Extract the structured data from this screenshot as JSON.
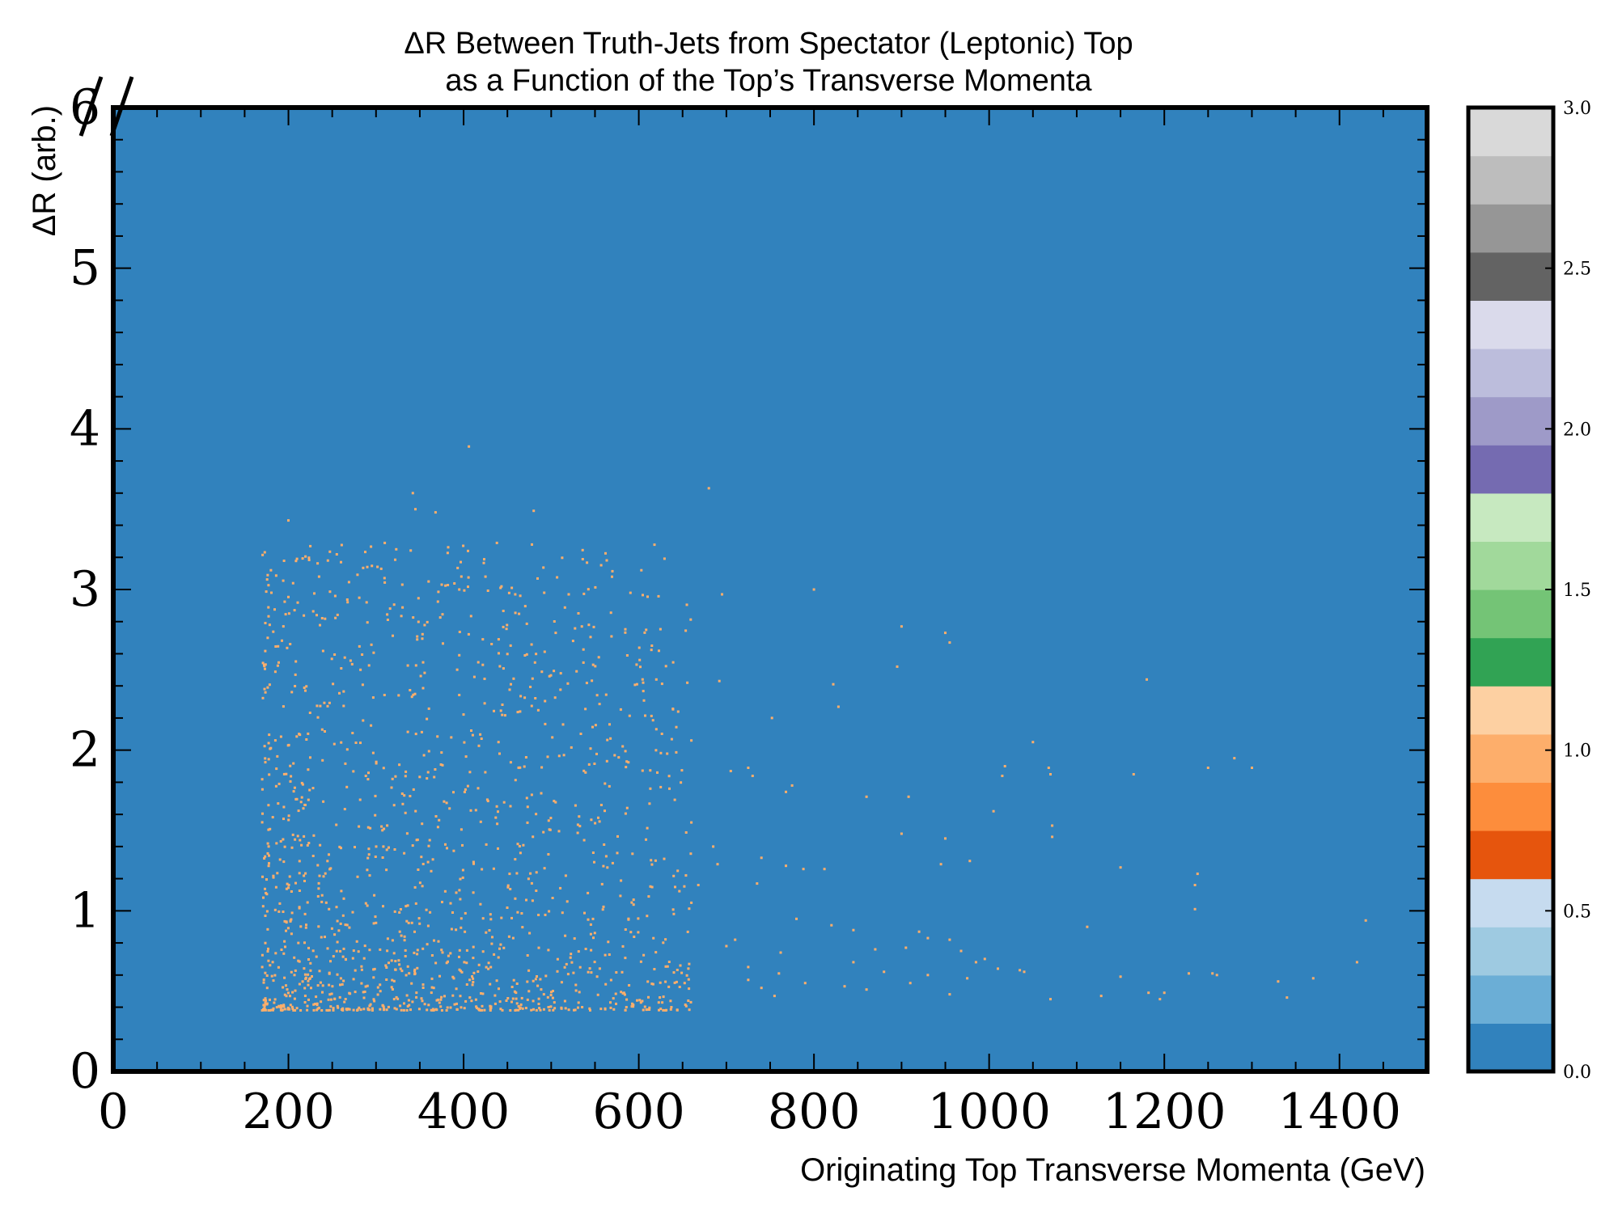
{
  "chart_data": {
    "type": "heatmap",
    "title_line1": "ΔR Between Truth-Jets from Spectator (Leptonic) Top",
    "title_line2": "as a Function of the Top’s Transverse Momenta",
    "xlabel": "Originating Top Transverse Momenta (GeV)",
    "ylabel": "ΔR (arb.)",
    "xlim": [
      0,
      1500
    ],
    "ylim": [
      0,
      6
    ],
    "x_ticks": [
      0,
      200,
      400,
      600,
      800,
      1000,
      1200,
      1400
    ],
    "y_ticks": [
      0,
      1,
      2,
      3,
      4,
      5,
      6
    ],
    "grid": false,
    "background_color": "#3182bd",
    "point_color": "#fdae6b",
    "colorbar": {
      "range": [
        0,
        3
      ],
      "ticks": [
        "0.0",
        "0.5",
        "1.0",
        "1.5",
        "2.0",
        "2.5",
        "3.0"
      ],
      "colors": [
        "#3182bd",
        "#6baed6",
        "#9ecae1",
        "#c6dbef",
        "#e6550d",
        "#fd8d3c",
        "#fdae6b",
        "#fdd0a2",
        "#31a354",
        "#74c476",
        "#a1d99b",
        "#c7e9c0",
        "#756bb1",
        "#9e9ac8",
        "#bcbddc",
        "#dadaeb",
        "#636363",
        "#969696",
        "#bdbdbd",
        "#d9d9d9"
      ]
    },
    "points": [
      [
        200,
        3.43
      ],
      [
        225,
        3.27
      ],
      [
        245,
        3.18
      ],
      [
        260,
        3.17
      ],
      [
        290,
        3.14
      ],
      [
        180,
        3.12
      ],
      [
        310,
        3.29
      ],
      [
        405,
        3.24
      ],
      [
        342,
        3.6
      ],
      [
        345,
        3.5
      ],
      [
        368,
        3.48
      ],
      [
        480,
        3.49
      ],
      [
        438,
        3.29
      ],
      [
        478,
        3.28
      ],
      [
        406,
        3.89
      ],
      [
        680,
        3.63
      ],
      [
        800,
        3.0
      ],
      [
        695,
        2.97
      ],
      [
        375,
        3.03
      ],
      [
        360,
        3.05
      ],
      [
        425,
        3.08
      ],
      [
        395,
        3.0
      ],
      [
        330,
        3.03
      ],
      [
        455,
        3.01
      ],
      [
        492,
        2.98
      ],
      [
        520,
        2.97
      ],
      [
        543,
        2.78
      ],
      [
        535,
        2.77
      ],
      [
        525,
        2.68
      ],
      [
        615,
        2.65
      ],
      [
        900,
        2.77
      ],
      [
        950,
        2.73
      ],
      [
        955,
        2.67
      ],
      [
        1180,
        2.44
      ],
      [
        895,
        2.52
      ],
      [
        620,
        2.44
      ],
      [
        605,
        2.42
      ],
      [
        598,
        2.41
      ],
      [
        692,
        2.43
      ],
      [
        822,
        2.41
      ],
      [
        828,
        2.27
      ],
      [
        752,
        2.2
      ],
      [
        498,
        2.46
      ],
      [
        470,
        2.59
      ],
      [
        440,
        2.69
      ],
      [
        432,
        2.66
      ],
      [
        1050,
        2.05
      ],
      [
        1018,
        1.9
      ],
      [
        1068,
        1.89
      ],
      [
        1250,
        1.89
      ],
      [
        1280,
        1.95
      ],
      [
        1300,
        1.89
      ],
      [
        1015,
        1.84
      ],
      [
        1070,
        1.85
      ],
      [
        1165,
        1.85
      ],
      [
        860,
        1.71
      ],
      [
        908,
        1.71
      ],
      [
        1005,
        1.62
      ],
      [
        900,
        1.48
      ],
      [
        950,
        1.45
      ],
      [
        1072,
        1.53
      ],
      [
        1072,
        1.46
      ],
      [
        945,
        1.29
      ],
      [
        978,
        1.31
      ],
      [
        1150,
        1.27
      ],
      [
        1238,
        1.23
      ],
      [
        1235,
        1.16
      ],
      [
        1235,
        1.01
      ],
      [
        1430,
        0.94
      ],
      [
        1420,
        0.68
      ],
      [
        1370,
        0.58
      ],
      [
        1330,
        0.56
      ],
      [
        1340,
        0.46
      ],
      [
        1255,
        0.61
      ],
      [
        1228,
        0.61
      ],
      [
        1200,
        0.49
      ],
      [
        1195,
        0.45
      ],
      [
        1182,
        0.49
      ],
      [
        1128,
        0.47
      ],
      [
        1112,
        0.9
      ],
      [
        1070,
        0.45
      ],
      [
        1040,
        0.62
      ],
      [
        1035,
        0.63
      ],
      [
        1010,
        0.64
      ],
      [
        995,
        0.7
      ],
      [
        985,
        0.68
      ],
      [
        955,
        0.48
      ],
      [
        968,
        0.75
      ],
      [
        975,
        0.58
      ],
      [
        1150,
        0.59
      ],
      [
        1260,
        0.6
      ],
      [
        740,
        1.33
      ],
      [
        768,
        1.28
      ],
      [
        788,
        1.26
      ],
      [
        812,
        1.26
      ],
      [
        780,
        0.95
      ],
      [
        820,
        0.91
      ],
      [
        845,
        0.88
      ],
      [
        870,
        0.76
      ],
      [
        880,
        0.62
      ],
      [
        905,
        0.77
      ],
      [
        762,
        0.74
      ],
      [
        725,
        0.57
      ],
      [
        735,
        1.17
      ],
      [
        768,
        1.74
      ],
      [
        775,
        1.78
      ],
      [
        730,
        1.84
      ],
      [
        725,
        1.89
      ],
      [
        705,
        1.87
      ],
      [
        660,
        2.06
      ],
      [
        645,
        2.24
      ],
      [
        620,
        2.13
      ],
      [
        625,
        1.77
      ],
      [
        635,
        1.76
      ],
      [
        660,
        1.55
      ],
      [
        685,
        1.4
      ],
      [
        690,
        1.29
      ],
      [
        668,
        1.16
      ],
      [
        660,
        1.05
      ],
      [
        640,
        0.98
      ],
      [
        700,
        0.78
      ],
      [
        710,
        0.82
      ],
      [
        725,
        0.65
      ],
      [
        740,
        0.52
      ],
      [
        760,
        0.61
      ],
      [
        790,
        0.55
      ],
      [
        755,
        0.47
      ],
      [
        835,
        0.53
      ],
      [
        845,
        0.68
      ],
      [
        860,
        0.51
      ],
      [
        910,
        0.55
      ],
      [
        930,
        0.6
      ],
      [
        920,
        0.87
      ],
      [
        930,
        0.83
      ],
      [
        955,
        0.82
      ]
    ],
    "dense_region": {
      "x_range": [
        170,
        660
      ],
      "y_min": 0.38,
      "count": 1400,
      "seed": 7
    }
  }
}
